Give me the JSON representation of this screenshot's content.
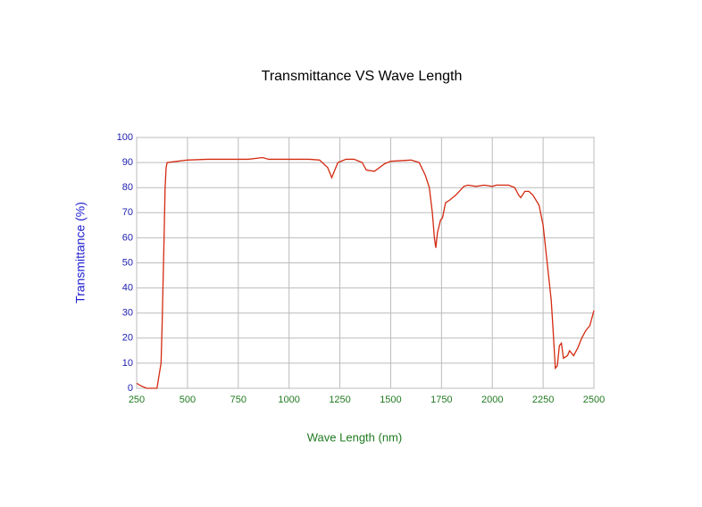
{
  "chart_data": {
    "type": "line",
    "title": "Transmittance VS Wave Length",
    "x_label": "Wave Length (nm)",
    "y_label": "Transmittance (%)",
    "xlim": [
      250,
      2500
    ],
    "xticks": [
      250,
      500,
      750,
      1000,
      1250,
      1500,
      1750,
      2000,
      2250,
      2500
    ],
    "ylim": [
      0,
      100
    ],
    "yticks": [
      0,
      10,
      20,
      30,
      40,
      50,
      60,
      70,
      80,
      90,
      100
    ],
    "grid": true,
    "series": [
      {
        "name": "Transmittance",
        "color": "#d42a10",
        "x": [
          250,
          270,
          300,
          350,
          360,
          370,
          375,
          385,
          390,
          395,
          400,
          450,
          500,
          600,
          800,
          870,
          900,
          1100,
          1150,
          1190,
          1210,
          1225,
          1240,
          1280,
          1320,
          1360,
          1380,
          1420,
          1470,
          1500,
          1600,
          1640,
          1670,
          1690,
          1705,
          1715,
          1722,
          1730,
          1745,
          1755,
          1770,
          1790,
          1820,
          1860,
          1880,
          1920,
          1960,
          2000,
          2020,
          2080,
          2110,
          2130,
          2140,
          2160,
          2180,
          2200,
          2230,
          2250,
          2270,
          2290,
          2300,
          2310,
          2320,
          2330,
          2340,
          2350,
          2370,
          2380,
          2400,
          2420,
          2440,
          2460,
          2480,
          2500
        ],
        "values": [
          2,
          1,
          0,
          0,
          5,
          10,
          24,
          60,
          80,
          88,
          90,
          90.5,
          91,
          91.3,
          91.3,
          92,
          91.3,
          91.3,
          91,
          88,
          84,
          87,
          90,
          91.3,
          91.3,
          90,
          87,
          86.5,
          89.5,
          90.5,
          91,
          90,
          85,
          80,
          70,
          60,
          56,
          62,
          67,
          68,
          74,
          75,
          77,
          80.5,
          81,
          80.5,
          81,
          80.5,
          81,
          81,
          80,
          77,
          76,
          78.5,
          78.5,
          77,
          73,
          65,
          50,
          35,
          22,
          8,
          9,
          17,
          18,
          12,
          13,
          15,
          13,
          16,
          20,
          23,
          25,
          31
        ]
      }
    ]
  }
}
